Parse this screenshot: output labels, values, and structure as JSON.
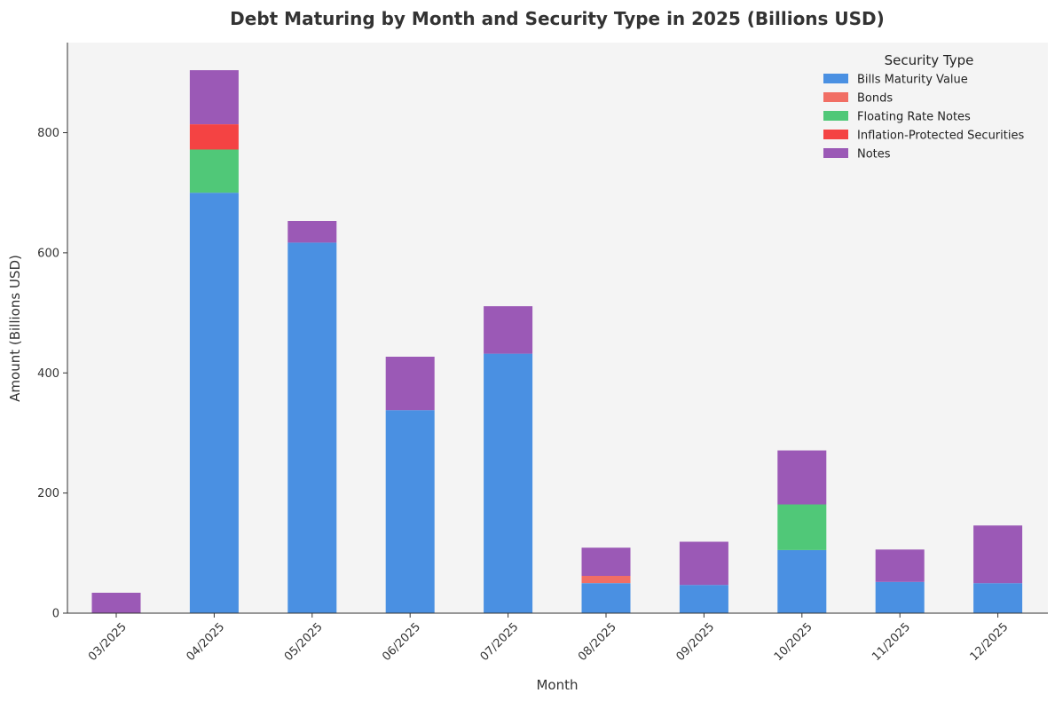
{
  "chart_data": {
    "type": "bar",
    "stacked": true,
    "title": "Debt Maturing by Month and Security Type in 2025 (Billions USD)",
    "xlabel": "Month",
    "ylabel": "Amount (Billions USD)",
    "ylim": [
      0,
      950
    ],
    "yticks": [
      0,
      200,
      400,
      600,
      800
    ],
    "grid": false,
    "legend": {
      "title": "Security Type",
      "placement": "top-right"
    },
    "categories": [
      "03/2025",
      "04/2025",
      "05/2025",
      "06/2025",
      "07/2025",
      "08/2025",
      "09/2025",
      "10/2025",
      "11/2025",
      "12/2025"
    ],
    "series": [
      {
        "name": "Bills Maturity Value",
        "color": "#4a90e2",
        "values": [
          0,
          700,
          617,
          338,
          432,
          50,
          47,
          105,
          52,
          50
        ]
      },
      {
        "name": "Bonds",
        "color": "#f16e64",
        "values": [
          0,
          0,
          0,
          0,
          0,
          12,
          0,
          0,
          0,
          0
        ]
      },
      {
        "name": "Floating Rate Notes",
        "color": "#50c878",
        "values": [
          0,
          72,
          0,
          0,
          0,
          0,
          0,
          76,
          0,
          0
        ]
      },
      {
        "name": "Inflation-Protected Securities",
        "color": "#f44343",
        "values": [
          0,
          42,
          0,
          0,
          0,
          0,
          0,
          0,
          0,
          0
        ]
      },
      {
        "name": "Notes",
        "color": "#9b59b6",
        "values": [
          34,
          90,
          36,
          89,
          79,
          47,
          72,
          90,
          54,
          96
        ]
      }
    ]
  }
}
